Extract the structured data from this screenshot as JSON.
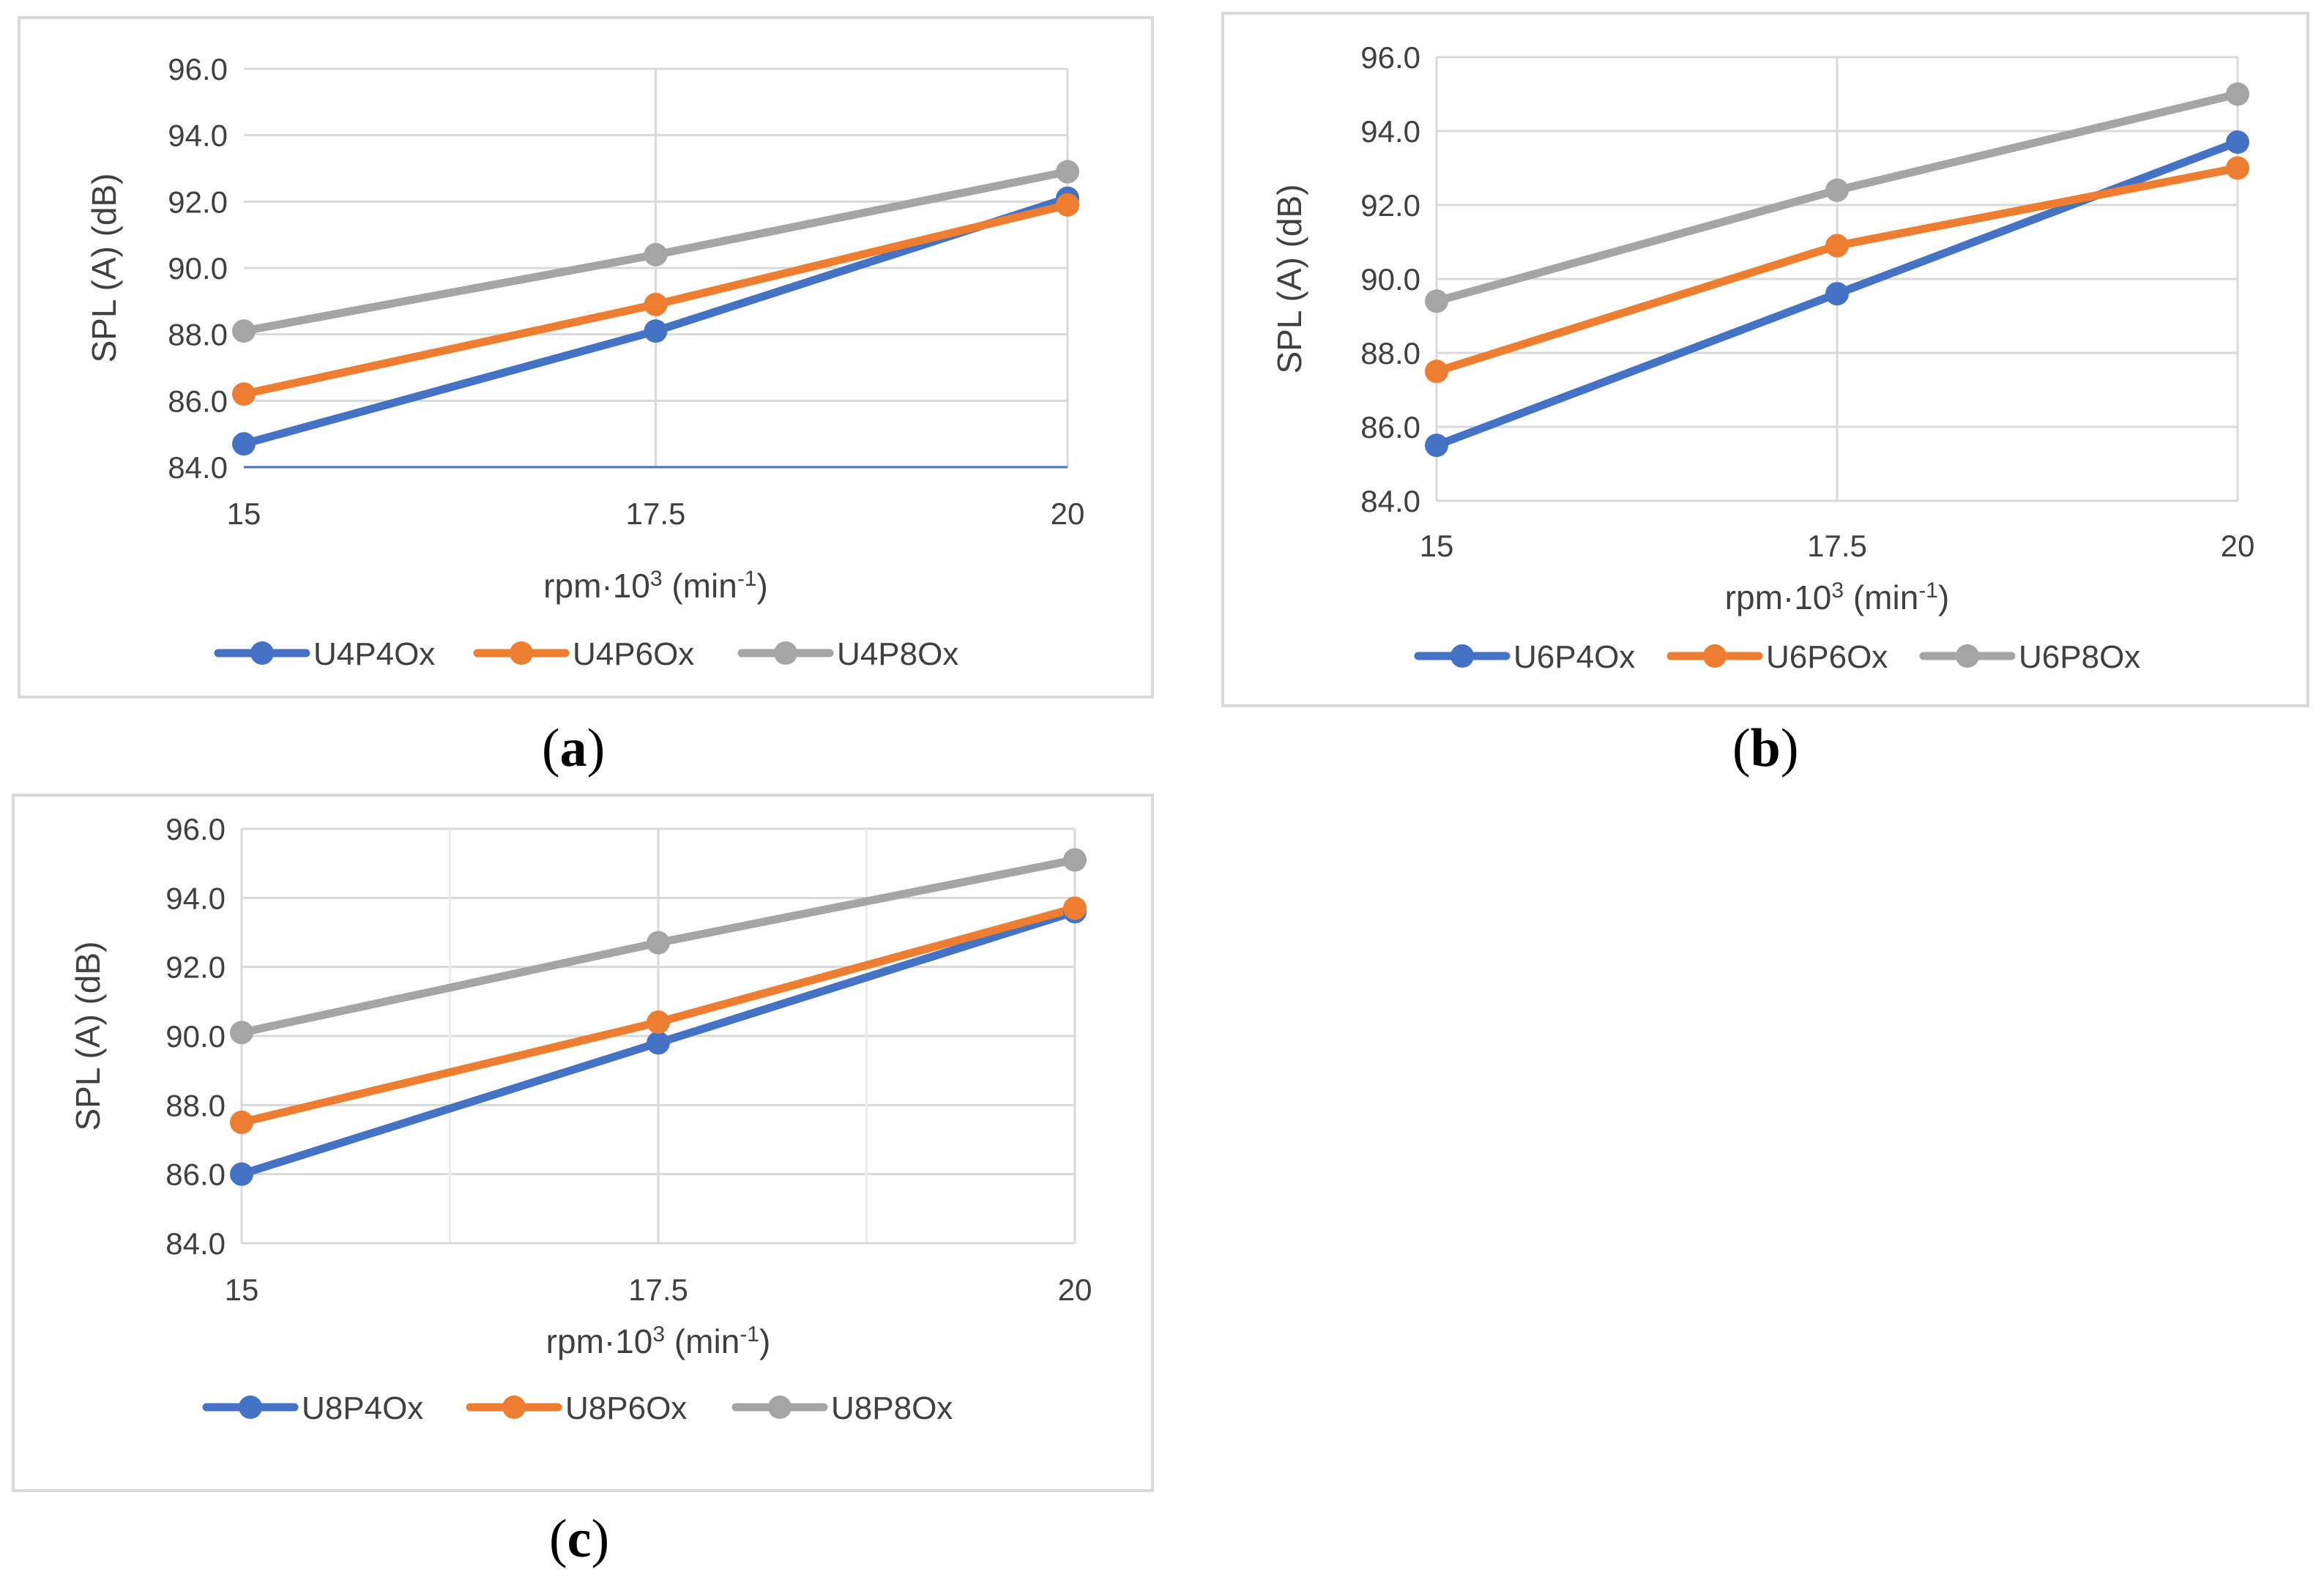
{
  "colors": {
    "blue": "#4472c4",
    "orange": "#ed7d31",
    "gray": "#a5a5a5",
    "grid": "#d9d9d9",
    "text": "#404040"
  },
  "captions": {
    "a": "a",
    "b": "b",
    "c": "c"
  },
  "chart_data": [
    {
      "id": "a",
      "type": "line",
      "title": "",
      "x": [
        "15",
        "17.5",
        "20"
      ],
      "xlabel": "rpm·10",
      "xlabel_exp": "3",
      "xlabel_unit": " (min",
      "xlabel_unit_exp": "-1",
      "xlabel_close": ")",
      "ylabel": "SPL (A) (dB)",
      "ylim": [
        84,
        96
      ],
      "yticks": [
        "84.0",
        "86.0",
        "88.0",
        "90.0",
        "92.0",
        "94.0",
        "96.0"
      ],
      "legend": "bottom",
      "series": [
        {
          "name": "U4P4Ox",
          "color": "#4472c4",
          "values": [
            84.7,
            88.1,
            92.1
          ]
        },
        {
          "name": "U4P6Ox",
          "color": "#ed7d31",
          "values": [
            86.2,
            88.9,
            91.9
          ]
        },
        {
          "name": "U4P8Ox",
          "color": "#a5a5a5",
          "values": [
            88.1,
            90.4,
            92.9
          ]
        }
      ]
    },
    {
      "id": "b",
      "type": "line",
      "title": "",
      "x": [
        "15",
        "17.5",
        "20"
      ],
      "xlabel": "rpm·10",
      "xlabel_exp": "3",
      "xlabel_unit": " (min",
      "xlabel_unit_exp": "-1",
      "xlabel_close": ")",
      "ylabel": "SPL (A) (dB)",
      "ylim": [
        84,
        96
      ],
      "yticks": [
        "84.0",
        "86.0",
        "88.0",
        "90.0",
        "92.0",
        "94.0",
        "96.0"
      ],
      "legend": "bottom",
      "series": [
        {
          "name": "U6P4Ox",
          "color": "#4472c4",
          "values": [
            85.5,
            89.6,
            93.7
          ]
        },
        {
          "name": "U6P6Ox",
          "color": "#ed7d31",
          "values": [
            87.5,
            90.9,
            93.0
          ]
        },
        {
          "name": "U6P8Ox",
          "color": "#a5a5a5",
          "values": [
            89.4,
            92.4,
            95.0
          ]
        }
      ]
    },
    {
      "id": "c",
      "type": "line",
      "title": "",
      "x": [
        "15",
        "17.5",
        "20"
      ],
      "xlabel": "rpm·10",
      "xlabel_exp": "3",
      "xlabel_unit": " (min",
      "xlabel_unit_exp": "-1",
      "xlabel_close": ")",
      "ylabel": "SPL (A) (dB)",
      "ylim": [
        84,
        96
      ],
      "yticks": [
        "84.0",
        "86.0",
        "88.0",
        "90.0",
        "92.0",
        "94.0",
        "96.0"
      ],
      "legend": "bottom",
      "series": [
        {
          "name": "U8P4Ox",
          "color": "#4472c4",
          "values": [
            86.0,
            89.8,
            93.6
          ]
        },
        {
          "name": "U8P6Ox",
          "color": "#ed7d31",
          "values": [
            87.5,
            90.4,
            93.7
          ]
        },
        {
          "name": "U8P8Ox",
          "color": "#a5a5a5",
          "values": [
            90.1,
            92.7,
            95.1
          ]
        }
      ]
    }
  ]
}
